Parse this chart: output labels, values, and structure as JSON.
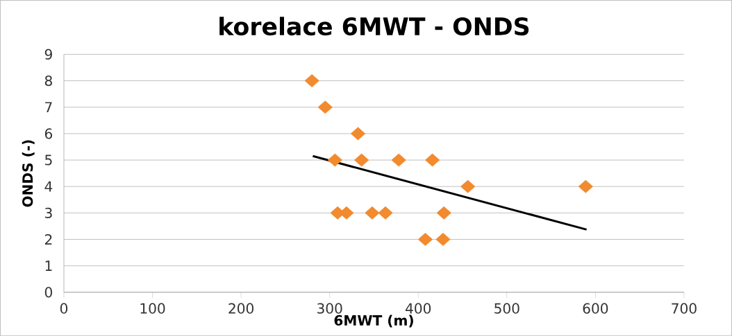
{
  "chart_data": {
    "type": "scatter",
    "title": "korelace 6MWT - ONDS",
    "xlabel": "6MWT (m)",
    "ylabel": "ONDS (-)",
    "series": [
      {
        "color": "#f28a2e",
        "marker": "diamond",
        "x": [
          280,
          295,
          332,
          306,
          336,
          378,
          416,
          456,
          589,
          309,
          319,
          348,
          363,
          429,
          408,
          428
        ],
        "values": [
          8,
          7,
          6,
          5,
          5,
          5,
          5,
          4,
          4,
          3,
          3,
          3,
          3,
          3,
          2,
          2
        ]
      },
      {
        "type": "line",
        "color": "#000000",
        "marker": "none",
        "x": [
          281,
          590
        ],
        "values": [
          5.15,
          2.37
        ]
      }
    ],
    "xlim": [
      0,
      700
    ],
    "ylim": [
      0,
      9
    ],
    "xticks": [
      0,
      100,
      200,
      300,
      400,
      500,
      600,
      700
    ],
    "yticks": [
      0,
      1,
      2,
      3,
      4,
      5,
      6,
      7,
      8,
      9
    ],
    "grid": "y"
  }
}
